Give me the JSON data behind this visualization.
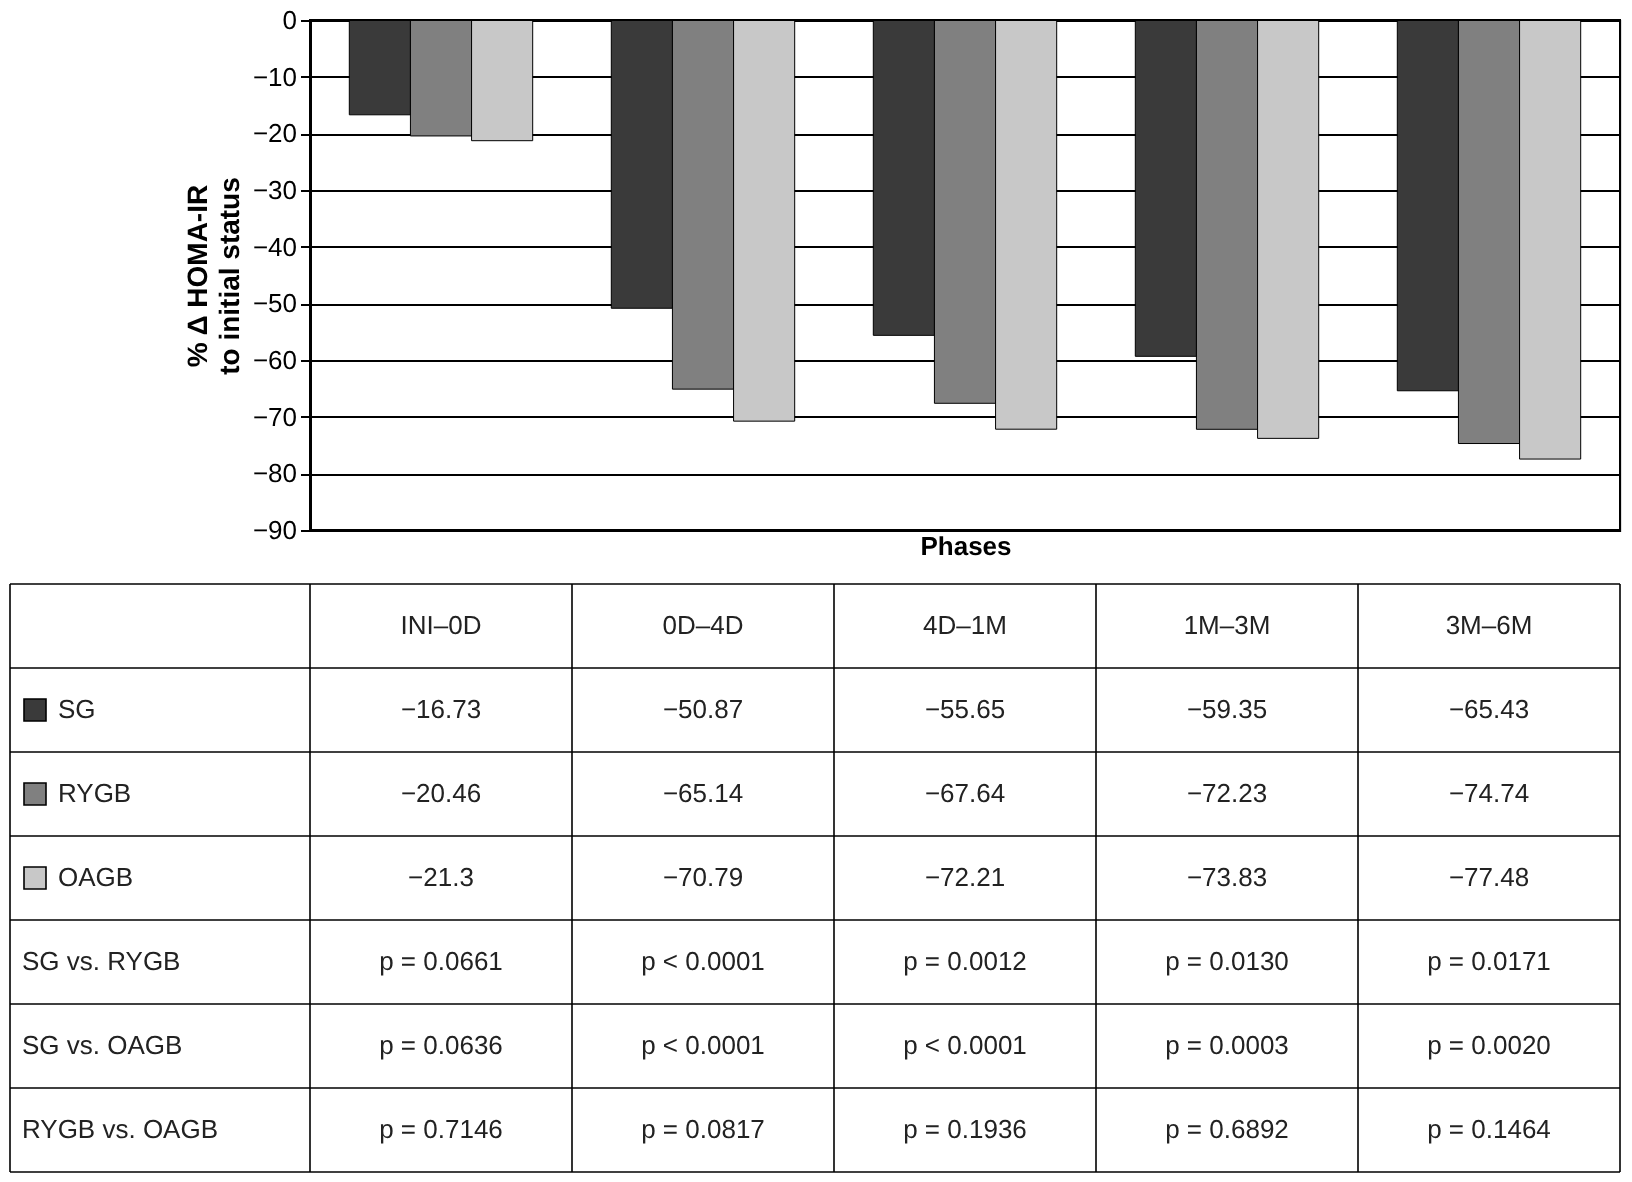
{
  "chart_data": {
    "type": "bar",
    "ylabel": "% Δ HOMA-IR\nto initial status",
    "xlabel": "Phases",
    "categories": [
      "INI–0D",
      "0D–4D",
      "4D–1M",
      "1M–3M",
      "3M–6M"
    ],
    "series": [
      {
        "name": "SG",
        "color": "#3a3a3a",
        "values": [
          -16.73,
          -50.87,
          -55.65,
          -59.35,
          -65.43
        ]
      },
      {
        "name": "RYGB",
        "color": "#808080",
        "values": [
          -20.46,
          -65.14,
          -67.64,
          -72.23,
          -74.74
        ]
      },
      {
        "name": "OAGB",
        "color": "#c8c8c8",
        "values": [
          -21.3,
          -70.79,
          -72.21,
          -73.83,
          -77.48
        ]
      }
    ],
    "ylim": [
      -90,
      0
    ],
    "yticks": [
      -90,
      -80,
      -70,
      -60,
      -50,
      -40,
      -30,
      -20,
      -10,
      0
    ],
    "grid": "y",
    "legend": "bottom left",
    "data_labels": true,
    "tick_labels": "y",
    "annotations": [
      "SG vs. RYGB",
      "p = 0.0661",
      "p < 0.0001",
      "p = 0.0012",
      "p = 0.0130",
      "p = 0.0171",
      "SG vs. OAGB",
      "p = 0.0636",
      "p < 0.0001",
      "p < 0.0001",
      "p = 0.0003",
      "p = 0.0020",
      "RYGB vs. OAGB",
      "p = 0.7146",
      "p = 0.0817",
      "p = 0.1936",
      "p = 0.6892",
      "p = 0.1464"
    ]
  }
}
